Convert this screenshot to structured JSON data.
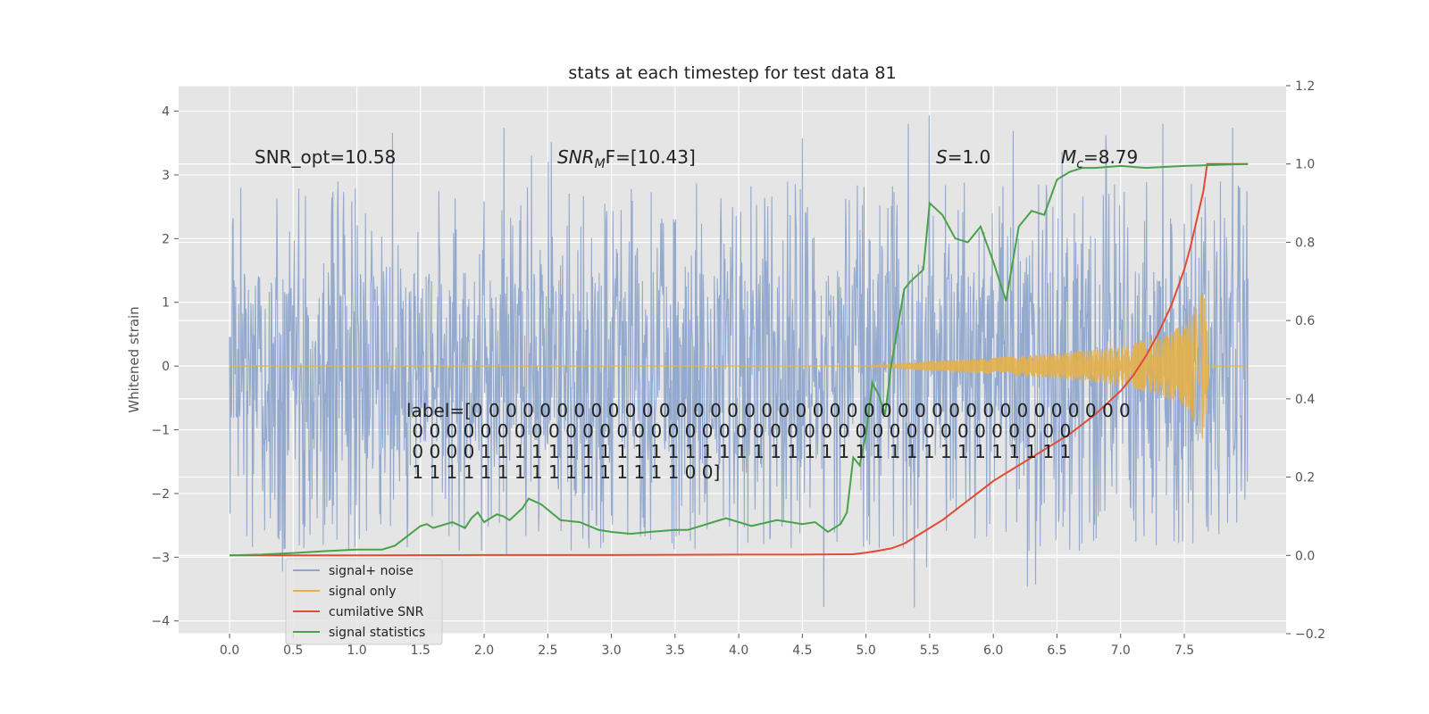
{
  "chart_data": {
    "type": "line",
    "title": "stats at each timestep for test data 81",
    "xlabel": "",
    "ylabel": "Whitened strain",
    "xlim": [
      -0.4,
      8.3
    ],
    "ylim": [
      -4.2,
      4.4
    ],
    "y2lim": [
      -0.2,
      1.2
    ],
    "grid": true,
    "legend_position": "lower-left",
    "x_ticks": [
      "0.0",
      "0.5",
      "1.0",
      "1.5",
      "2.0",
      "2.5",
      "3.0",
      "3.5",
      "4.0",
      "4.5",
      "5.0",
      "5.5",
      "6.0",
      "6.5",
      "7.0",
      "7.5"
    ],
    "y_ticks": [
      "−4",
      "−3",
      "−2",
      "−1",
      "0",
      "1",
      "2",
      "3",
      "4"
    ],
    "y2_ticks": [
      "−0.2",
      "0.0",
      "0.2",
      "0.4",
      "0.6",
      "0.8",
      "1.0",
      "1.2"
    ],
    "annotations": {
      "snr_opt": "SNR_opt=10.58",
      "snr_mf_main": "SNR",
      "snr_mf_sub": "M",
      "snr_mf_rest": "F=[10.43]",
      "s_main": "S",
      "s_rest": "=1.0",
      "mc_main": "M",
      "mc_sub": "c",
      "mc_rest": "=8.79",
      "label_lines": [
        "label=[0 0 0 0 0 0 0 0 0 0 0 0 0 0 0 0 0 0 0 0 0 0 0 0 0 0 0 0 0 0 0 0 0 0 0 0 0 0 0",
        " 0 0 0 0 0 0 0 0 0 0 0 0 0 0 0 0 0 0 0 0 0 0 0 0 0 0 0 0 0 0 0 0 0 0 0 0 0 0 0",
        " 0 0 0 0 1 1 1 1 1 1 1 1 1 1 1 1 1 1 1 1 1 1 1 1 1 1 1 1 1 1 1 1 1 1 1 1 1 1 1",
        " 1 1 1 1 1 1 1 1 1 1 1 1 1 1 1 1 0 0]"
      ]
    },
    "series": [
      {
        "name": "signal+ noise",
        "axis": "left",
        "color": "#8ea5cc",
        "envelope": {
          "x_start": 0.0,
          "x_end": 8.0,
          "core_amplitude": 1.5,
          "max_peak": 4.0,
          "min_peak": -3.8
        }
      },
      {
        "name": "signal only",
        "axis": "left",
        "color": "#e6b04a",
        "x": [
          0.0,
          5.0,
          5.5,
          6.0,
          6.5,
          7.0,
          7.3,
          7.5,
          7.6,
          7.65,
          7.68,
          7.7,
          8.0
        ],
        "amplitude": [
          0.0,
          0.0,
          0.08,
          0.13,
          0.2,
          0.3,
          0.45,
          0.65,
          0.95,
          1.25,
          0.6,
          0.0,
          0.0
        ]
      },
      {
        "name": "cumilative SNR",
        "axis": "right",
        "color": "#e24a33",
        "x": [
          0.0,
          0.5,
          1.0,
          2.0,
          3.0,
          4.0,
          4.5,
          4.9,
          5.0,
          5.1,
          5.2,
          5.3,
          5.4,
          5.5,
          5.6,
          5.7,
          5.8,
          5.9,
          6.0,
          6.2,
          6.4,
          6.6,
          6.8,
          7.0,
          7.1,
          7.2,
          7.3,
          7.4,
          7.5,
          7.55,
          7.6,
          7.65,
          7.68,
          8.0
        ],
        "y": [
          0.0,
          0.0,
          0.0,
          0.001,
          0.001,
          0.002,
          0.002,
          0.003,
          0.007,
          0.012,
          0.018,
          0.03,
          0.05,
          0.07,
          0.09,
          0.115,
          0.14,
          0.165,
          0.19,
          0.23,
          0.27,
          0.31,
          0.36,
          0.42,
          0.46,
          0.51,
          0.57,
          0.64,
          0.73,
          0.79,
          0.86,
          0.93,
          1.0,
          1.0
        ]
      },
      {
        "name": "signal statistics",
        "axis": "right",
        "color": "#48a24a",
        "x": [
          0.0,
          0.25,
          0.5,
          0.75,
          1.0,
          1.2,
          1.3,
          1.5,
          1.55,
          1.6,
          1.65,
          1.75,
          1.85,
          1.9,
          1.95,
          2.0,
          2.1,
          2.15,
          2.2,
          2.3,
          2.35,
          2.45,
          2.6,
          2.75,
          2.9,
          3.0,
          3.15,
          3.3,
          3.5,
          3.6,
          3.8,
          3.9,
          4.0,
          4.1,
          4.3,
          4.5,
          4.6,
          4.7,
          4.8,
          4.85,
          4.9,
          4.95,
          5.0,
          5.05,
          5.1,
          5.15,
          5.2,
          5.3,
          5.35,
          5.45,
          5.5,
          5.6,
          5.7,
          5.8,
          5.9,
          6.0,
          6.05,
          6.1,
          6.2,
          6.3,
          6.4,
          6.5,
          6.6,
          6.7,
          6.8,
          7.0,
          7.2,
          7.5,
          8.0
        ],
        "y": [
          0.0,
          0.002,
          0.006,
          0.011,
          0.015,
          0.015,
          0.025,
          0.075,
          0.08,
          0.07,
          0.075,
          0.085,
          0.07,
          0.095,
          0.11,
          0.085,
          0.105,
          0.1,
          0.09,
          0.12,
          0.145,
          0.13,
          0.09,
          0.085,
          0.065,
          0.06,
          0.055,
          0.06,
          0.065,
          0.065,
          0.085,
          0.095,
          0.085,
          0.075,
          0.09,
          0.08,
          0.085,
          0.06,
          0.08,
          0.11,
          0.25,
          0.23,
          0.31,
          0.44,
          0.41,
          0.36,
          0.49,
          0.68,
          0.7,
          0.73,
          0.9,
          0.87,
          0.81,
          0.8,
          0.84,
          0.75,
          0.7,
          0.65,
          0.84,
          0.88,
          0.87,
          0.96,
          0.98,
          0.99,
          0.99,
          0.995,
          0.99,
          0.995,
          1.0
        ]
      }
    ]
  }
}
